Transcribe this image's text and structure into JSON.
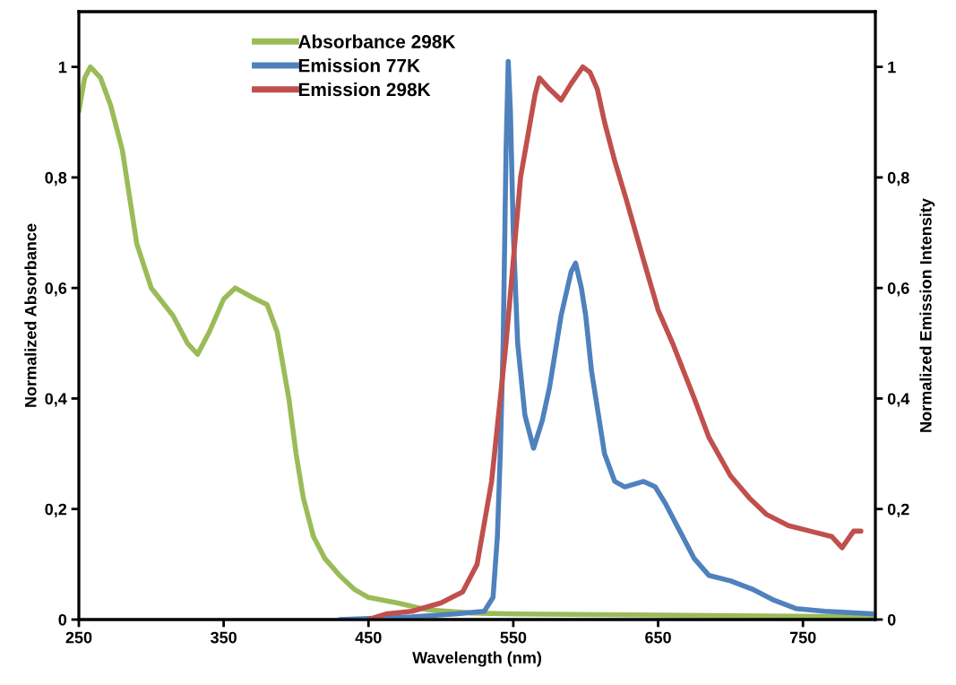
{
  "chart_data": {
    "type": "line",
    "xlabel": "Wavelength (nm)",
    "ylabel": "Normalized Absorbance",
    "y2label": "Normalized Emission Intensity",
    "xlim": [
      250,
      800
    ],
    "xticks": [
      250,
      350,
      450,
      550,
      650,
      750
    ],
    "ylim": [
      0,
      1.1
    ],
    "yticks": [
      0,
      {
        "value": 0.2,
        "label": "0,2"
      },
      {
        "value": 0.4,
        "label": "0,4"
      },
      {
        "value": 0.6,
        "label": "0,6"
      },
      {
        "value": 0.8,
        "label": "0,8"
      },
      1
    ],
    "y2lim": [
      0,
      1.1
    ],
    "y2ticks": [
      0,
      {
        "value": 0.2,
        "label": "0,2"
      },
      {
        "value": 0.4,
        "label": "0,4"
      },
      {
        "value": 0.6,
        "label": "0,6"
      },
      {
        "value": 0.8,
        "label": "0,8"
      },
      1
    ],
    "grid": false,
    "legend": "top left",
    "line_style": "solid",
    "marker": "none",
    "series": [
      {
        "name": "Absorbance 298K",
        "color": "#9bbb59",
        "x": [
          250,
          254,
          258,
          265,
          272,
          280,
          290,
          300,
          315,
          325,
          332,
          340,
          350,
          358,
          365,
          372,
          380,
          387,
          395,
          400,
          405,
          412,
          420,
          430,
          440,
          450,
          470,
          490,
          520,
          550,
          650,
          800
        ],
        "values": [
          0.92,
          0.98,
          1.0,
          0.98,
          0.93,
          0.85,
          0.68,
          0.6,
          0.55,
          0.5,
          0.48,
          0.52,
          0.58,
          0.6,
          0.59,
          0.58,
          0.57,
          0.52,
          0.4,
          0.3,
          0.22,
          0.15,
          0.11,
          0.08,
          0.055,
          0.04,
          0.03,
          0.018,
          0.012,
          0.01,
          0.008,
          0.005
        ]
      },
      {
        "name": "Emission 77K",
        "color": "#4f81bd",
        "axis": "y2",
        "x": [
          430,
          480,
          510,
          530,
          536,
          539,
          541,
          543,
          545,
          546.5,
          548,
          550,
          553,
          558,
          564,
          570,
          575,
          583,
          590,
          593,
          597,
          600,
          604,
          607,
          613,
          620,
          627,
          640,
          648,
          655,
          665,
          675,
          685,
          700,
          715,
          730,
          745,
          765,
          800
        ],
        "values": [
          0,
          0.005,
          0.01,
          0.015,
          0.04,
          0.15,
          0.3,
          0.5,
          0.85,
          1.01,
          0.92,
          0.7,
          0.5,
          0.37,
          0.31,
          0.36,
          0.42,
          0.55,
          0.63,
          0.645,
          0.6,
          0.55,
          0.45,
          0.4,
          0.3,
          0.25,
          0.24,
          0.25,
          0.24,
          0.21,
          0.16,
          0.11,
          0.08,
          0.07,
          0.055,
          0.035,
          0.02,
          0.015,
          0.01
        ]
      },
      {
        "name": "Emission 298K",
        "color": "#c0504d",
        "axis": "y2",
        "x": [
          450,
          462,
          480,
          500,
          515,
          525,
          535,
          545,
          555,
          565,
          568,
          575,
          583,
          590,
          598,
          603,
          608,
          613,
          620,
          628,
          640,
          650,
          660,
          675,
          685,
          700,
          713,
          725,
          740,
          755,
          770,
          777,
          785,
          790
        ],
        "values": [
          0,
          0.01,
          0.015,
          0.03,
          0.05,
          0.1,
          0.25,
          0.5,
          0.8,
          0.95,
          0.98,
          0.96,
          0.94,
          0.97,
          1.0,
          0.99,
          0.96,
          0.9,
          0.83,
          0.76,
          0.65,
          0.56,
          0.5,
          0.4,
          0.33,
          0.26,
          0.22,
          0.19,
          0.17,
          0.16,
          0.15,
          0.13,
          0.16,
          0.16
        ]
      }
    ]
  }
}
